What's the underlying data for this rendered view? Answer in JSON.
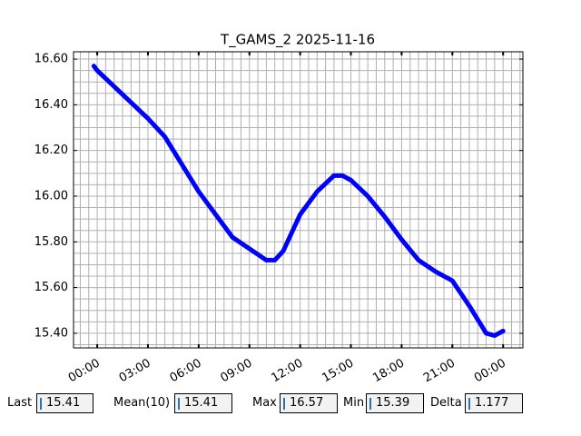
{
  "chart_data": {
    "type": "line",
    "title": "T_GAMS_2 2025-11-16",
    "x": [
      -0.2,
      0,
      1,
      2,
      3,
      4,
      5,
      6,
      7,
      8,
      9,
      10,
      10.5,
      11,
      12,
      13,
      14,
      14.5,
      15,
      16,
      17,
      18,
      19,
      20,
      21,
      22,
      23,
      23.5,
      24
    ],
    "series": [
      {
        "name": "T_GAMS_2",
        "color": "#0000ff",
        "values": [
          16.57,
          16.55,
          16.48,
          16.41,
          16.34,
          16.26,
          16.14,
          16.02,
          15.92,
          15.82,
          15.77,
          15.72,
          15.72,
          15.76,
          15.92,
          16.02,
          16.09,
          16.09,
          16.07,
          16.0,
          15.91,
          15.81,
          15.72,
          15.67,
          15.63,
          15.52,
          15.4,
          15.39,
          15.41
        ]
      }
    ],
    "xlim": [
      -1.4,
      25.17
    ],
    "xticks": [
      {
        "value": 0,
        "label": "00:00"
      },
      {
        "value": 3,
        "label": "03:00"
      },
      {
        "value": 6,
        "label": "06:00"
      },
      {
        "value": 9,
        "label": "09:00"
      },
      {
        "value": 12,
        "label": "12:00"
      },
      {
        "value": 15,
        "label": "15:00"
      },
      {
        "value": 18,
        "label": "18:00"
      },
      {
        "value": 21,
        "label": "21:00"
      },
      {
        "value": 24,
        "label": "00:00"
      }
    ],
    "ylim": [
      15.336,
      16.632
    ],
    "yticks": [
      {
        "value": 15.4,
        "label": "15.40"
      },
      {
        "value": 15.6,
        "label": "15.60"
      },
      {
        "value": 15.8,
        "label": "15.80"
      },
      {
        "value": 16.0,
        "label": "16.00"
      },
      {
        "value": 16.2,
        "label": "16.20"
      },
      {
        "value": 16.4,
        "label": "16.40"
      },
      {
        "value": 16.6,
        "label": "16.60"
      }
    ],
    "grid": true,
    "minor_grid": true
  },
  "status_fields": [
    {
      "label": "Last",
      "value": "15.41"
    },
    {
      "label": "Mean(10)",
      "value": "15.41"
    },
    {
      "label": "Max",
      "value": "16.57"
    },
    {
      "label": "Min",
      "value": "15.39"
    },
    {
      "label": "Delta",
      "value": "1.177"
    }
  ]
}
